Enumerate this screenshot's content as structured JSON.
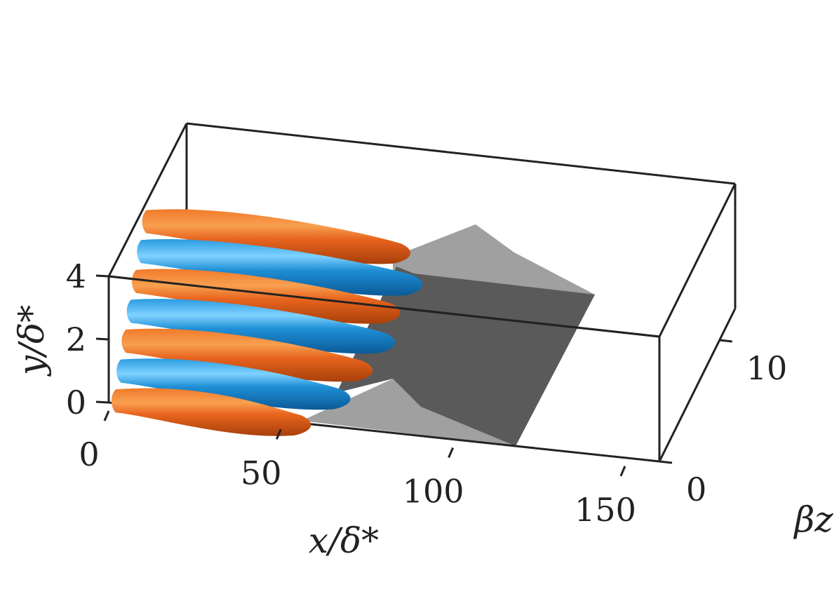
{
  "chart_data": {
    "type": "3d-isosurface",
    "title": "",
    "axes": {
      "x": {
        "label": "x/δ*",
        "ticks": [
          0,
          50,
          100,
          150
        ],
        "range": [
          0,
          160
        ]
      },
      "y": {
        "label": "y/δ*",
        "ticks": [
          0,
          2,
          4
        ],
        "range": [
          0,
          4
        ]
      },
      "z": {
        "label": "βz",
        "ticks": [
          0,
          10
        ],
        "range": [
          0,
          12.6
        ]
      }
    },
    "grid": false,
    "colors": {
      "positive_structures": "#e8641e",
      "negative_structures": "#1f8fd6",
      "base_surface_light": "#a0a0a0",
      "base_surface_dark": "#5a5a5a",
      "box": "#222222"
    },
    "streaks": [
      {
        "sign": "positive",
        "z_index": 0,
        "x_end": 60
      },
      {
        "sign": "negative",
        "z_index": 1,
        "x_end": 70
      },
      {
        "sign": "positive",
        "z_index": 2,
        "x_end": 75
      },
      {
        "sign": "negative",
        "z_index": 3,
        "x_end": 80
      },
      {
        "sign": "positive",
        "z_index": 4,
        "x_end": 80
      },
      {
        "sign": "negative",
        "z_index": 5,
        "x_end": 85
      },
      {
        "sign": "positive",
        "z_index": 6,
        "x_end": 80
      }
    ]
  }
}
